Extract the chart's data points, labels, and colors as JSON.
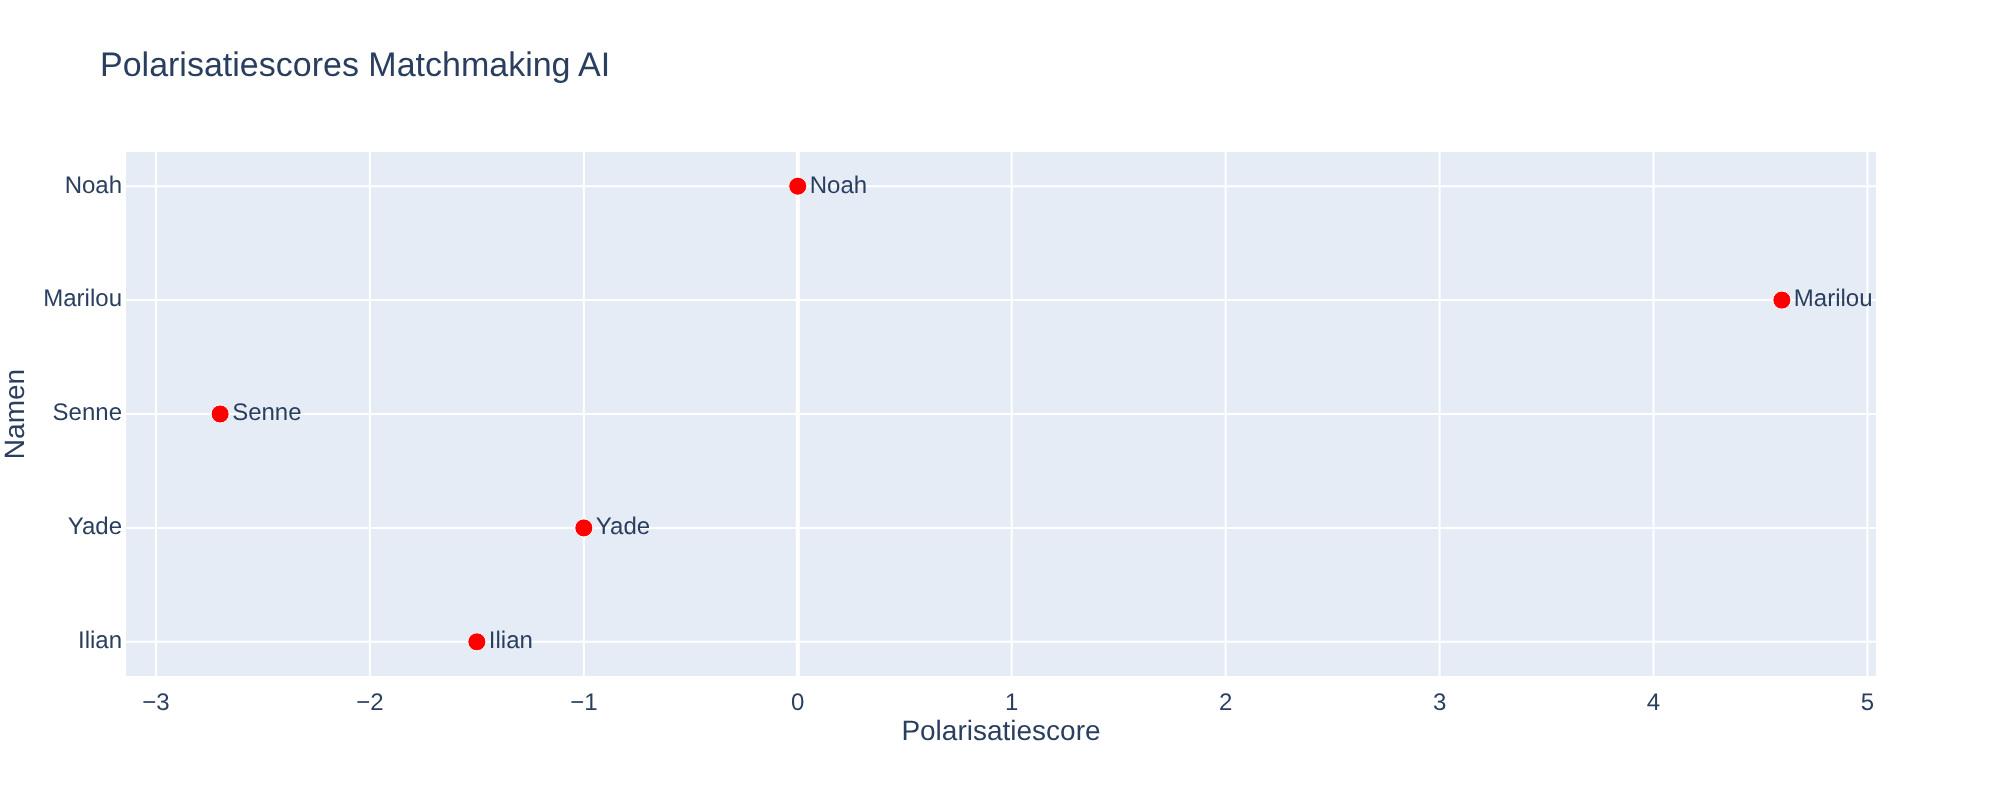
{
  "chart_data": {
    "type": "scatter",
    "title": "Polarisatiescores Matchmaking AI",
    "xlabel": "Polarisatiescore",
    "ylabel": "Namen",
    "orientation": "horizontal",
    "categories": [
      "Noah",
      "Marilou",
      "Senne",
      "Yade",
      "Ilian"
    ],
    "series": [
      {
        "color": "#ff0000",
        "values": [
          0,
          4.6,
          -2.7,
          -1,
          -1.5
        ]
      }
    ],
    "xlim": [
      -3.14,
      5.04
    ],
    "xticks": [
      {
        "value": -3,
        "label": "−3"
      },
      {
        "value": -2,
        "label": "−2"
      },
      {
        "value": -1,
        "label": "−1"
      },
      0,
      1,
      2,
      3,
      4,
      5
    ],
    "annotations": [
      {
        "text": "Noah",
        "x": 0,
        "y": "Noah"
      },
      {
        "text": "Marilou",
        "x": 4.6,
        "y": "Marilou"
      },
      {
        "text": "Senne",
        "x": -2.7,
        "y": "Senne"
      },
      {
        "text": "Yade",
        "x": -1,
        "y": "Yade"
      },
      {
        "text": "Ilian",
        "x": -1.5,
        "y": "Ilian"
      }
    ],
    "grid": true,
    "marker": "circle"
  }
}
